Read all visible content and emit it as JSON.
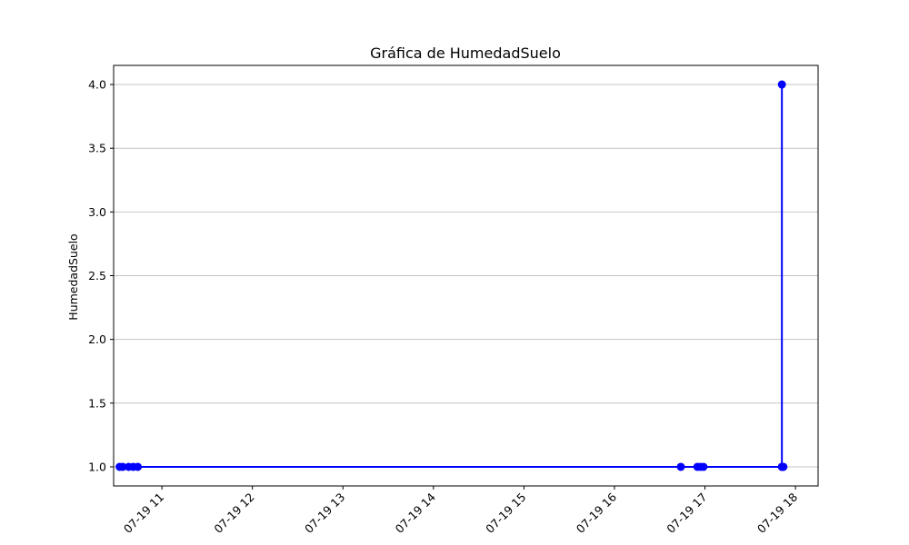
{
  "chart_data": {
    "type": "line",
    "title": "Gráfica de HumedadSuelo",
    "xlabel": "",
    "ylabel": "HumedadSuelo",
    "x_axis_type": "datetime",
    "xlim": [
      "07-19 10:28",
      "07-19 18:15"
    ],
    "ylim": [
      0.85,
      4.15
    ],
    "x_ticks": [
      {
        "label": "07-19 11",
        "value": "11:00"
      },
      {
        "label": "07-19 12",
        "value": "12:00"
      },
      {
        "label": "07-19 13",
        "value": "13:00"
      },
      {
        "label": "07-19 14",
        "value": "14:00"
      },
      {
        "label": "07-19 15",
        "value": "15:00"
      },
      {
        "label": "07-19 16",
        "value": "16:00"
      },
      {
        "label": "07-19 17",
        "value": "17:00"
      },
      {
        "label": "07-19 18",
        "value": "18:00"
      }
    ],
    "y_ticks": [
      {
        "label": "1.0",
        "value": 1.0
      },
      {
        "label": "1.5",
        "value": 1.5
      },
      {
        "label": "2.0",
        "value": 2.0
      },
      {
        "label": "2.5",
        "value": 2.5
      },
      {
        "label": "3.0",
        "value": 3.0
      },
      {
        "label": "3.5",
        "value": 3.5
      },
      {
        "label": "4.0",
        "value": 4.0
      }
    ],
    "grid": {
      "y": true,
      "x": false
    },
    "series": [
      {
        "color": "#0000ff",
        "marker": "circle",
        "points": [
          {
            "x": "10:32",
            "y": 1
          },
          {
            "x": "10:34",
            "y": 1
          },
          {
            "x": "10:38",
            "y": 1
          },
          {
            "x": "10:41",
            "y": 1
          },
          {
            "x": "10:44",
            "y": 1
          },
          {
            "x": "16:44",
            "y": 1
          },
          {
            "x": "16:55",
            "y": 1
          },
          {
            "x": "16:57",
            "y": 1
          },
          {
            "x": "16:59",
            "y": 1
          },
          {
            "x": "17:51",
            "y": 1
          },
          {
            "x": "17:51",
            "y": 4
          },
          {
            "x": "17:51",
            "y": 1
          },
          {
            "x": "17:52",
            "y": 1
          }
        ]
      }
    ]
  }
}
